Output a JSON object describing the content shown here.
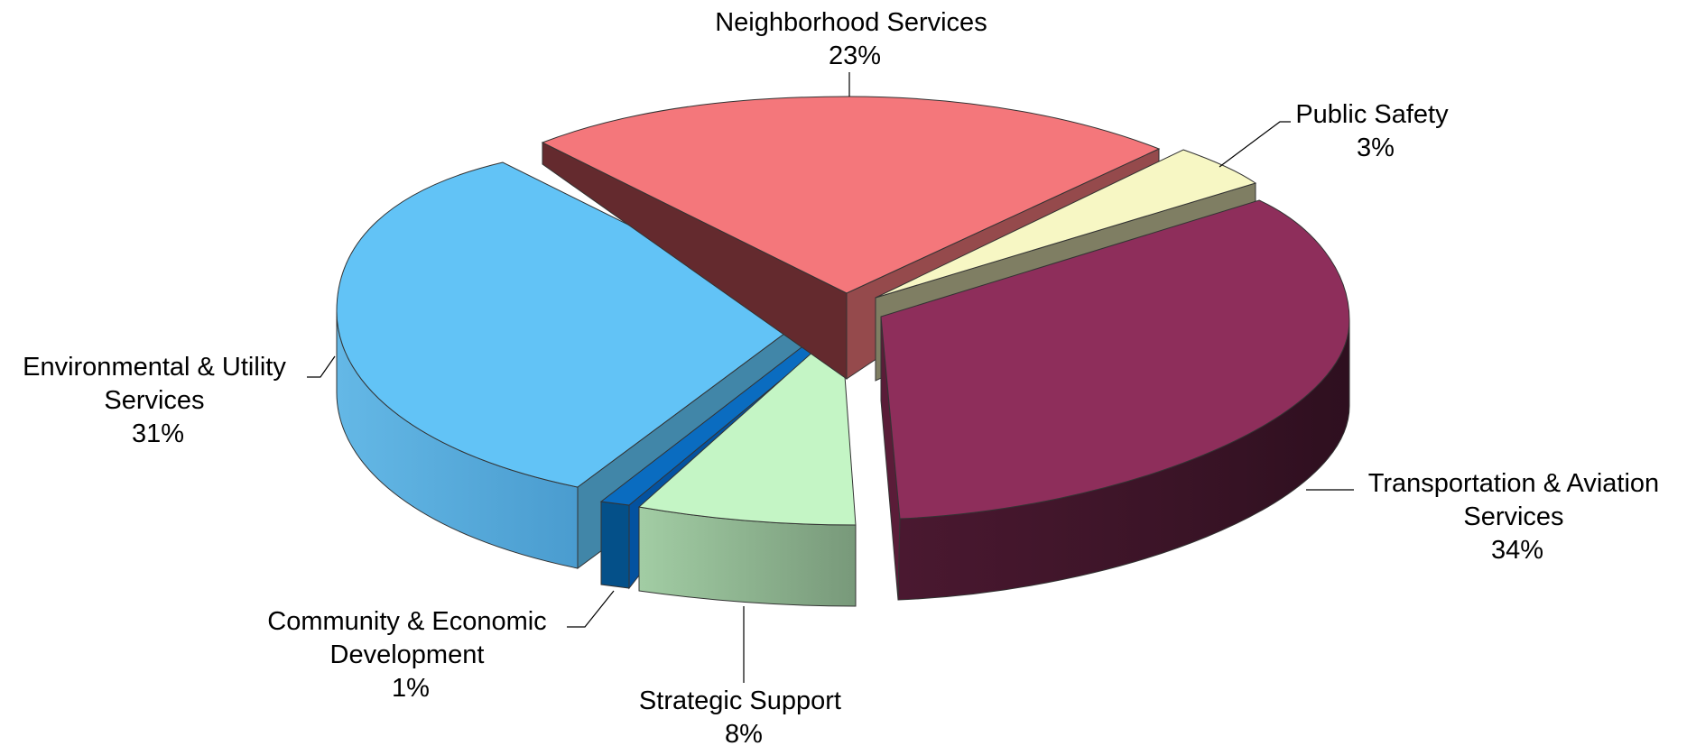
{
  "chart_data": {
    "type": "pie",
    "style": "3d-exploded",
    "title": "",
    "slices": [
      {
        "key": "neighborhood",
        "label_lines": [
          "Neighborhood Services"
        ],
        "pct_text": "23%",
        "value": 23,
        "color": "#F4777B"
      },
      {
        "key": "public_safety",
        "label_lines": [
          "Public Safety"
        ],
        "pct_text": "3%",
        "value": 3,
        "color": "#F7F7C4"
      },
      {
        "key": "transportation",
        "label_lines": [
          "Transportation & Aviation",
          "Services"
        ],
        "pct_text": "34%",
        "value": 34,
        "color": "#8E2E5B"
      },
      {
        "key": "strategic",
        "label_lines": [
          "Strategic Support"
        ],
        "pct_text": "8%",
        "value": 8,
        "color": "#C4F5C5"
      },
      {
        "key": "community",
        "label_lines": [
          "Community & Economic",
          "Development"
        ],
        "pct_text": "1%",
        "value": 1,
        "color": "#0A6CC0"
      },
      {
        "key": "environmental",
        "label_lines": [
          "Environmental & Utility",
          "Services"
        ],
        "pct_text": "31%",
        "value": 31,
        "color": "#62C3F6"
      }
    ]
  }
}
